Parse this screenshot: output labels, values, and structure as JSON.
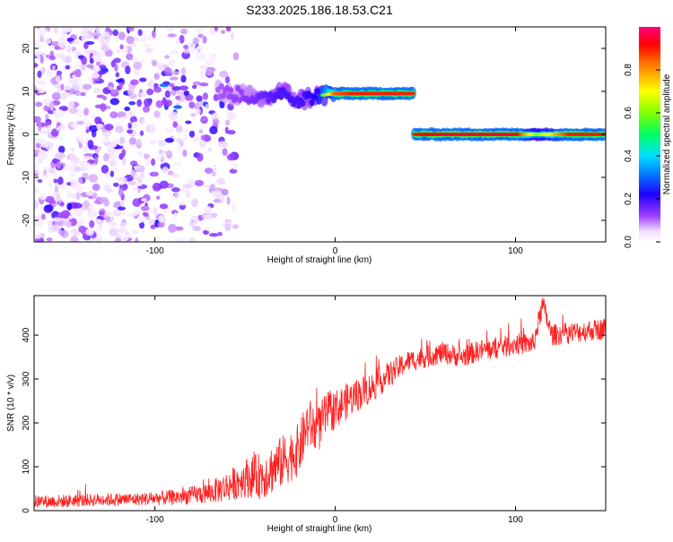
{
  "title": "S233.2025.186.18.53.C21",
  "chart_data": [
    {
      "type": "heatmap",
      "title": "S233.2025.186.18.53.C21",
      "xlabel": "Height of straight line (km)",
      "ylabel": "Frequency (Hz)",
      "xlim": [
        -167,
        150
      ],
      "ylim": [
        -25,
        25
      ],
      "xticks": [
        -100,
        0,
        100
      ],
      "yticks": [
        -20,
        -10,
        0,
        10,
        20
      ],
      "colorbar": {
        "label": "Normalized spectral amplitude",
        "range": [
          0,
          1
        ],
        "ticks": [
          0.0,
          0.2,
          0.4,
          0.6,
          0.8
        ],
        "colors": [
          "#ffffff",
          "#f2e6ff",
          "#8000ff",
          "#0000ff",
          "#00c8ff",
          "#00ff80",
          "#80ff00",
          "#ffff00",
          "#ff8000",
          "#ff0000",
          "#ff0080"
        ]
      },
      "noise_region": {
        "x_start": -167,
        "x_end": -65,
        "freq_range": [
          -25,
          25
        ],
        "amplitude": 0.15
      },
      "spectral_line": [
        {
          "x": -65,
          "freq": 10,
          "amplitude": 0.2
        },
        {
          "x": -50,
          "freq": 9,
          "amplitude": 0.25
        },
        {
          "x": -40,
          "freq": 8,
          "amplitude": 0.3
        },
        {
          "x": -30,
          "freq": 10,
          "amplitude": 0.35
        },
        {
          "x": -20,
          "freq": 8,
          "amplitude": 0.35
        },
        {
          "x": -10,
          "freq": 9,
          "amplitude": 0.4
        },
        {
          "x": 0,
          "freq": 9.5,
          "amplitude": 0.85
        },
        {
          "x": 10,
          "freq": 9.5,
          "amplitude": 0.9
        },
        {
          "x": 20,
          "freq": 9.5,
          "amplitude": 0.9
        },
        {
          "x": 30,
          "freq": 9.5,
          "amplitude": 0.9
        },
        {
          "x": 44,
          "freq": 9.5,
          "amplitude": 0.9
        },
        {
          "x": 44,
          "freq": 0,
          "amplitude": 0.9
        },
        {
          "x": 60,
          "freq": 0,
          "amplitude": 0.95
        },
        {
          "x": 80,
          "freq": 0,
          "amplitude": 0.95
        },
        {
          "x": 100,
          "freq": 0,
          "amplitude": 0.95
        },
        {
          "x": 112,
          "freq": 0,
          "amplitude": 0.6
        },
        {
          "x": 130,
          "freq": 0,
          "amplitude": 0.9
        },
        {
          "x": 150,
          "freq": 0,
          "amplitude": 0.9
        }
      ]
    },
    {
      "type": "line",
      "xlabel": "Height of straight line (km)",
      "ylabel": "SNR (10 * v/v)",
      "xlim": [
        -167,
        150
      ],
      "ylim": [
        0,
        490
      ],
      "xticks": [
        -100,
        0,
        100
      ],
      "yticks": [
        0,
        100,
        200,
        300,
        400
      ],
      "color": "#ff2020",
      "series": [
        {
          "x": [
            -167,
            -150,
            -130,
            -110,
            -90,
            -80,
            -70,
            -60,
            -50,
            -40,
            -30,
            -20,
            -15,
            -10,
            -5,
            0,
            10,
            20,
            30,
            40,
            50,
            60,
            70,
            80,
            90,
            100,
            110,
            115,
            120,
            130,
            140,
            150
          ],
          "values": [
            20,
            22,
            25,
            26,
            30,
            35,
            40,
            55,
            75,
            80,
            110,
            140,
            200,
            180,
            220,
            230,
            260,
            280,
            310,
            340,
            350,
            360,
            350,
            365,
            370,
            380,
            380,
            470,
            400,
            405,
            410,
            415
          ],
          "noise": [
            15,
            15,
            15,
            15,
            18,
            20,
            25,
            35,
            45,
            55,
            60,
            60,
            60,
            55,
            50,
            45,
            40,
            35,
            30,
            25,
            25,
            25,
            25,
            25,
            25,
            25,
            25,
            25,
            25,
            25,
            25,
            25
          ]
        }
      ]
    }
  ]
}
